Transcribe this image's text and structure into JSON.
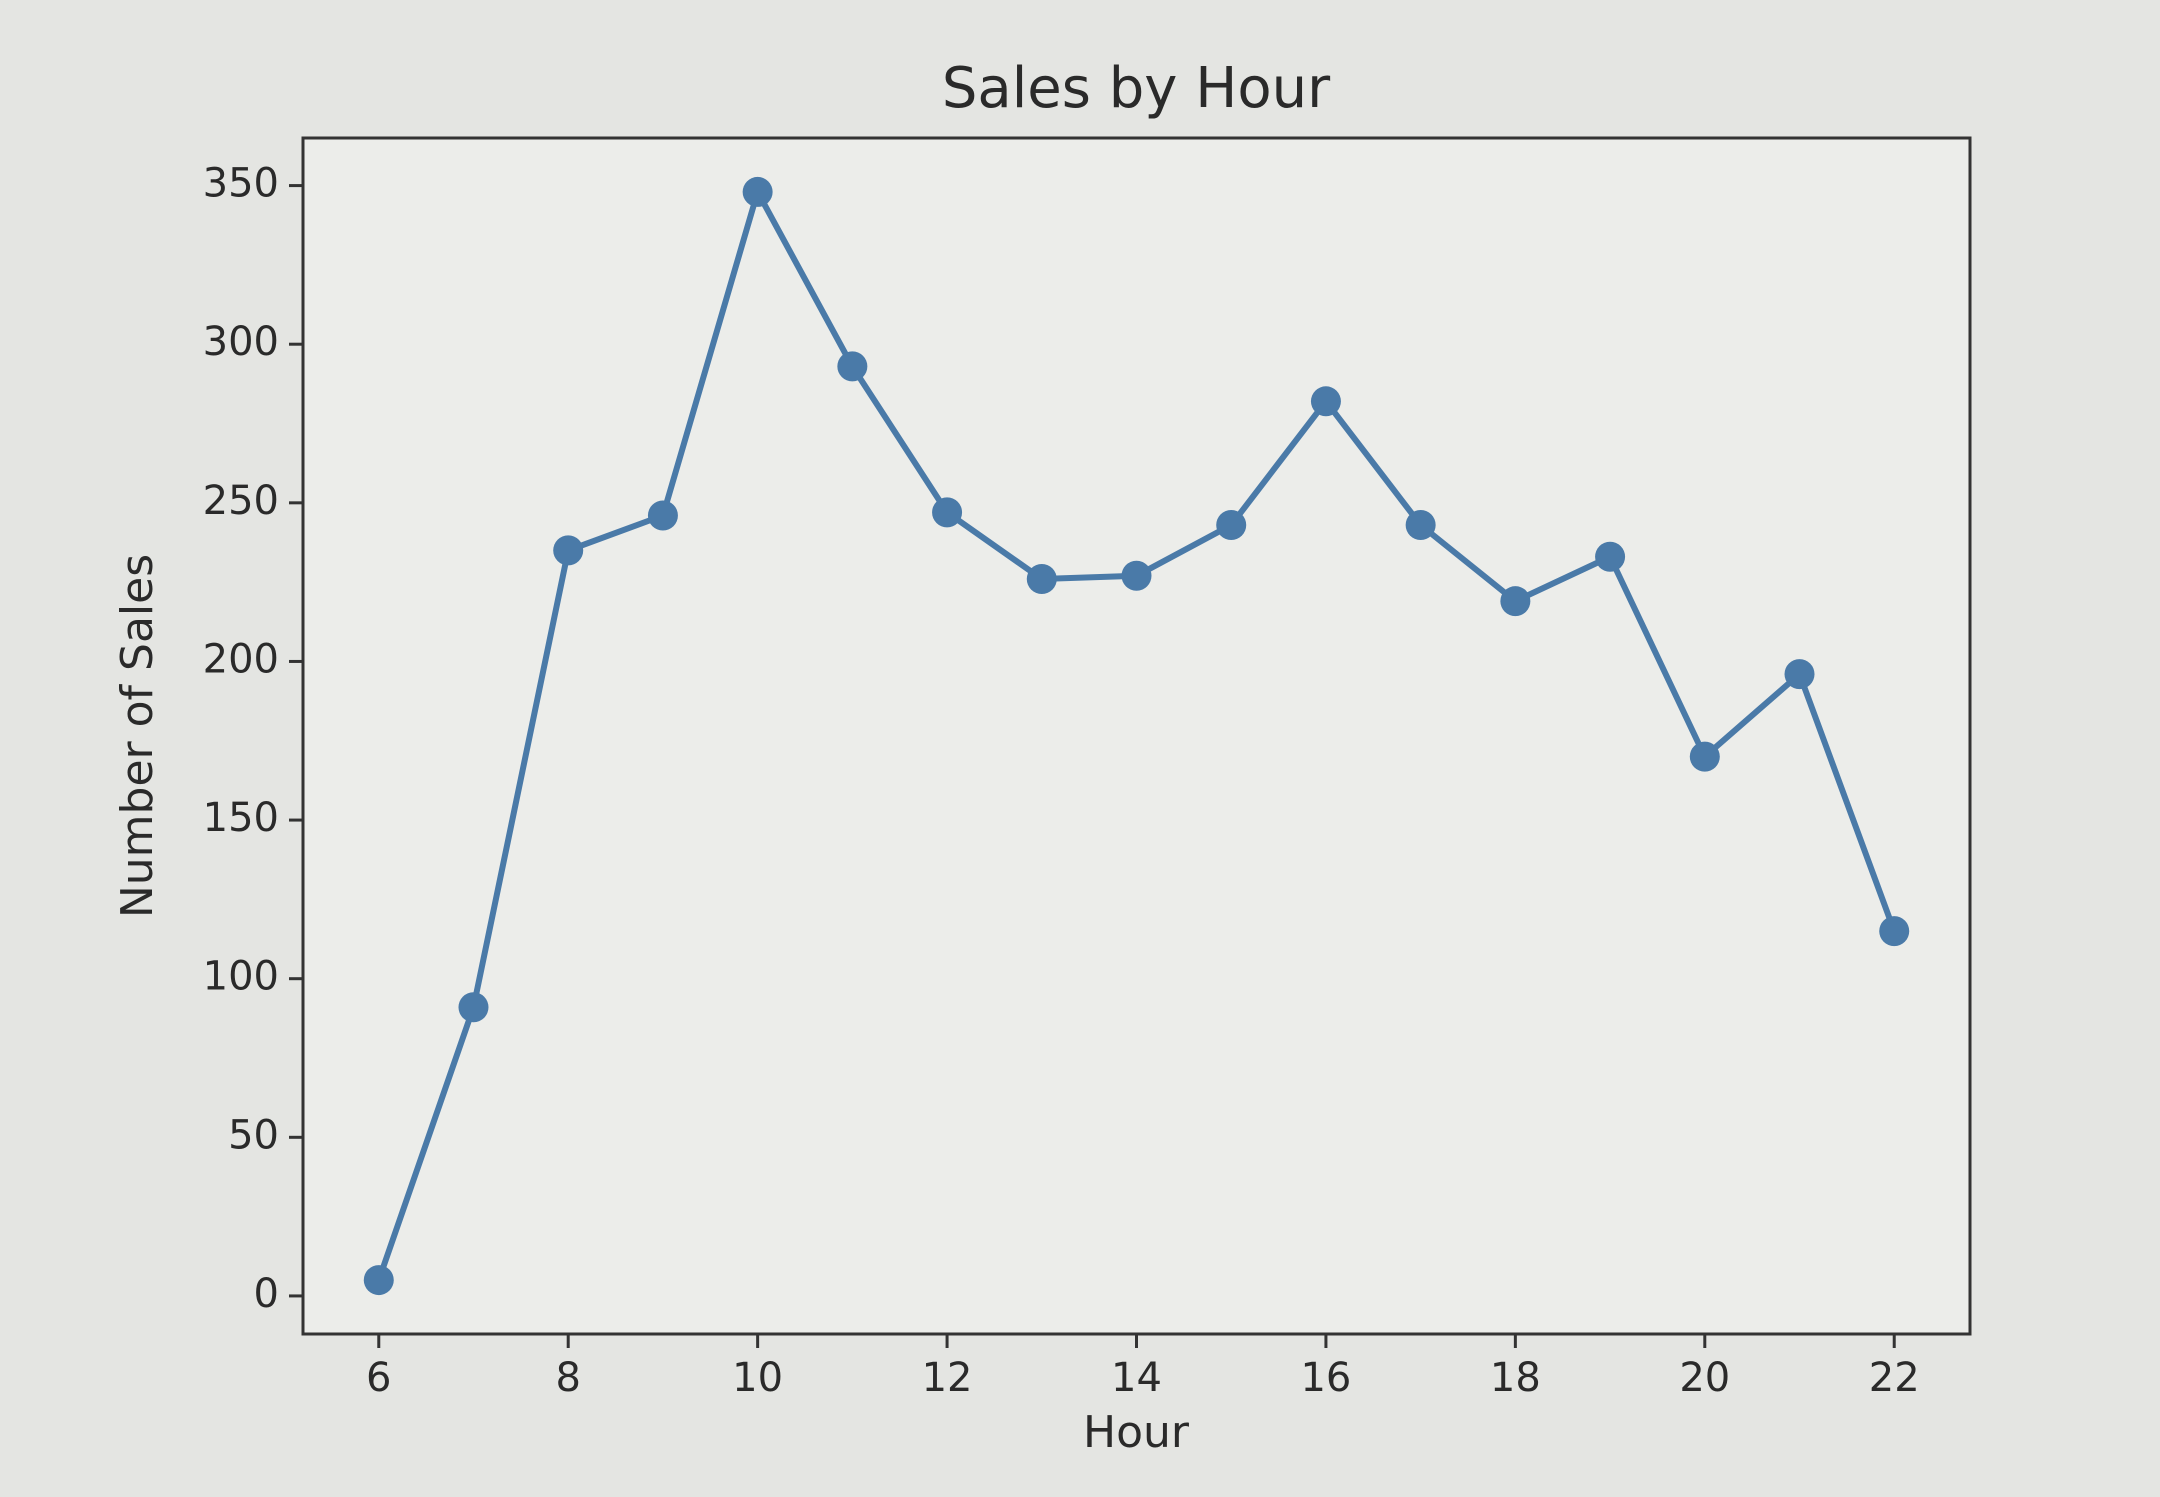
{
  "chart_data": {
    "type": "line",
    "title": "Sales by Hour",
    "x_label": "Hour",
    "y_label": "Number of Sales",
    "x": [
      6,
      7,
      8,
      9,
      10,
      11,
      12,
      13,
      14,
      15,
      16,
      17,
      18,
      19,
      20,
      21,
      22
    ],
    "series": [
      {
        "name": "Number of Sales",
        "color": "#4a7aa8",
        "values": [
          5,
          91,
          235,
          246,
          348,
          293,
          247,
          226,
          227,
          243,
          282,
          243,
          219,
          233,
          170,
          196,
          115
        ]
      }
    ],
    "xlim": [
      5.2,
      22.8
    ],
    "xticks": [
      6,
      8,
      10,
      12,
      14,
      16,
      18,
      20,
      22
    ],
    "ylim": [
      -12,
      365
    ],
    "yticks": [
      0,
      50,
      100,
      150,
      200,
      250,
      300,
      350
    ],
    "grid": false,
    "markers": true
  }
}
